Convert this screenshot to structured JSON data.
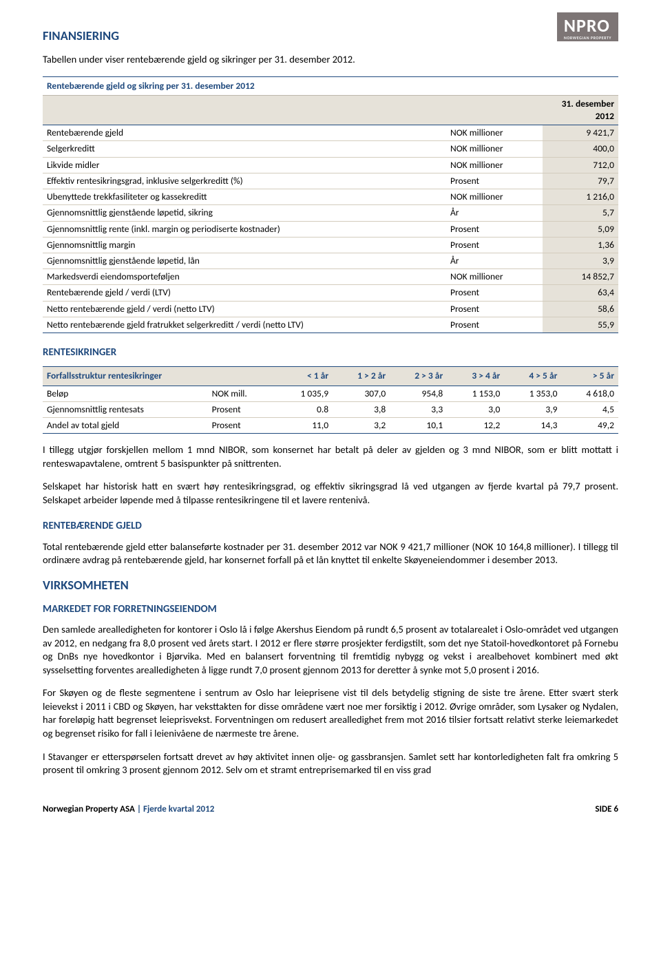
{
  "logo": {
    "text": "NPRO",
    "sub": "NORWEGIAN PROPERTY"
  },
  "h_fin": "FINANSIERING",
  "intro": "Tabellen under viser rentebærende gjeld og sikringer per 31. desember 2012.",
  "table1": {
    "title": "Rentebærende gjeld og sikring per 31. desember 2012",
    "date": "31. desember 2012",
    "rows": [
      {
        "label": "Rentebærende gjeld",
        "unit": "NOK millioner",
        "val": "9 421,7"
      },
      {
        "label": "Selgerkreditt",
        "unit": "NOK millioner",
        "val": "400,0"
      },
      {
        "label": "Likvide midler",
        "unit": "NOK millioner",
        "val": "712,0"
      },
      {
        "label": "Effektiv rentesikringsgrad, inklusive selgerkreditt (%)",
        "unit": "Prosent",
        "val": "79,7"
      },
      {
        "label": "Ubenyttede trekkfasiliteter og kassekreditt",
        "unit": "NOK millioner",
        "val": "1 216,0"
      },
      {
        "label": "Gjennomsnittlig gjenstående løpetid, sikring",
        "unit": "År",
        "val": "5,7"
      },
      {
        "label": "Gjennomsnittlig rente (inkl. margin og periodiserte kostnader)",
        "unit": "Prosent",
        "val": "5,09"
      },
      {
        "label": "Gjennomsnittlig margin",
        "unit": "Prosent",
        "val": "1,36"
      },
      {
        "label": "Gjennomsnittlig gjenstående løpetid, lån",
        "unit": "År",
        "val": "3,9"
      },
      {
        "label": "Markedsverdi eiendomsporteføljen",
        "unit": "NOK millioner",
        "val": "14 852,7"
      },
      {
        "label": "Rentebærende gjeld / verdi (LTV)",
        "unit": "Prosent",
        "val": "63,4"
      },
      {
        "label": "Netto rentebærende gjeld / verdi (netto LTV)",
        "unit": "Prosent",
        "val": "58,6"
      },
      {
        "label": "Netto rentebærende gjeld fratrukket selgerkreditt / verdi (netto LTV)",
        "unit": "Prosent",
        "val": "55,9"
      }
    ]
  },
  "h_rente": "RENTESIKRINGER",
  "table2": {
    "headers": [
      "Forfallsstruktur rentesikringer",
      "",
      "< 1 år",
      "1 > 2 år",
      "2 > 3 år",
      "3 > 4 år",
      "4 > 5 år",
      "> 5 år"
    ],
    "rows": [
      [
        "Beløp",
        "NOK mill.",
        "1 035,9",
        "307,0",
        "954,8",
        "1 153,0",
        "1 353,0",
        "4 618,0"
      ],
      [
        "Gjennomsnittlig rentesats",
        "Prosent",
        "0.8",
        "3,8",
        "3,3",
        "3,0",
        "3,9",
        "4,5"
      ],
      [
        "Andel av total gjeld",
        "Prosent",
        "11,0",
        "3,2",
        "10,1",
        "12,2",
        "14,3",
        "49,2"
      ]
    ]
  },
  "para1": "I tillegg utgjør forskjellen mellom 1 mnd NIBOR, som konsernet har betalt på deler av gjelden og 3 mnd NIBOR, som er blitt mottatt i renteswapavtalene, omtrent 5 basispunkter på snittrenten.",
  "para2": "Selskapet har historisk hatt en svært høy rentesikringsgrad, og effektiv sikringsgrad lå ved utgangen av fjerde kvartal på 79,7 prosent. Selskapet arbeider løpende med å tilpasse rentesikringene til et lavere rentenivå.",
  "h_rbg": "RENTEBÆRENDE GJELD",
  "para3": "Total rentebærende gjeld etter balanseførte kostnader per 31. desember 2012 var NOK 9 421,7 millioner (NOK 10 164,8 millioner). I tillegg til ordinære avdrag på rentebærende gjeld, har konsernet forfall på et lån knyttet til enkelte Skøyeneiendommer i desember 2013.",
  "h_virk": "VIRKSOMHETEN",
  "h_marked": "MARKEDET FOR FORRETNINGSEIENDOM",
  "para4": "Den samlede arealledigheten for kontorer i Oslo lå i følge Akershus Eiendom på rundt 6,5 prosent av totalarealet i Oslo-området ved utgangen av 2012, en nedgang fra 8,0 prosent ved årets start. I 2012 er flere større prosjekter ferdigstilt, som det nye Statoil-hovedkontoret på Fornebu og DnBs nye hovedkontor i Bjørvika. Med en balansert forventning til fremtidig nybygg og vekst i arealbehovet kombinert med økt sysselsetting forventes arealledigheten å ligge rundt 7,0 prosent gjennom 2013 for deretter å synke mot 5,0 prosent i 2016.",
  "para5": "For Skøyen og de fleste segmentene i sentrum av Oslo har leieprisene vist til dels betydelig stigning de siste tre årene. Etter svært sterk leievekst i 2011 i CBD og Skøyen, har veksttakten for disse områdene vært noe mer forsiktig i 2012. Øvrige områder, som Lysaker og Nydalen, har foreløpig hatt begrenset leieprisvekst. Forventningen om redusert arealledighet frem mot 2016 tilsier fortsatt relativt sterke leiemarkedet og begrenset risiko for fall i leienivåene de nærmeste tre årene.",
  "para6": "I Stavanger er etterspørselen fortsatt drevet av høy aktivitet innen olje- og gassbransjen. Samlet sett har kontorledigheten falt fra omkring 5 prosent til omkring 3 prosent gjennom 2012. Selv om et stramt entreprisemarked til en viss grad",
  "footer": {
    "company": "Norwegian Property ASA",
    "sep": " | ",
    "period": "Fjerde kvartal 2012",
    "page": "SIDE 6"
  }
}
